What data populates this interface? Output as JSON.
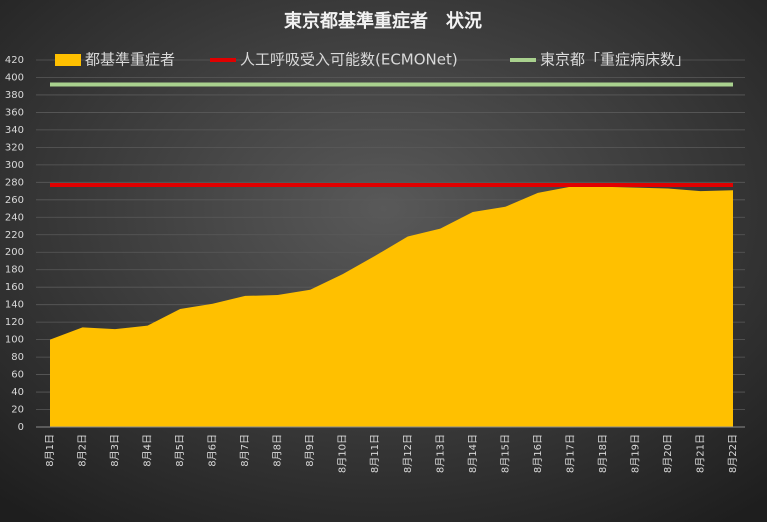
{
  "chart_data": {
    "type": "area",
    "title": "東京都基準重症者　状況",
    "categories": [
      "8月1日",
      "8月2日",
      "8月3日",
      "8月4日",
      "8月5日",
      "8月6日",
      "8月7日",
      "8月8日",
      "8月9日",
      "8月10日",
      "8月11日",
      "8月12日",
      "8月13日",
      "8月14日",
      "8月15日",
      "8月16日",
      "8月17日",
      "8月18日",
      "8月19日",
      "8月20日",
      "8月21日",
      "8月22日"
    ],
    "series": [
      {
        "name": "都基準重症者",
        "type": "area",
        "color": "#ffc000",
        "values": [
          100,
          114,
          112,
          116,
          135,
          141,
          150,
          151,
          157,
          175,
          196,
          218,
          227,
          246,
          252,
          268,
          275,
          275,
          274,
          273,
          270,
          271
        ]
      },
      {
        "name": "人工呼吸受入可能数(ECMONet)",
        "type": "line",
        "color": "#e00000",
        "values": [
          277,
          277,
          277,
          277,
          277,
          277,
          277,
          277,
          277,
          277,
          277,
          277,
          277,
          277,
          277,
          277,
          277,
          277,
          277,
          277,
          277,
          277
        ]
      },
      {
        "name": "東京都「重症病床数」",
        "type": "line",
        "color": "#a9d18e",
        "values": [
          392,
          392,
          392,
          392,
          392,
          392,
          392,
          392,
          392,
          392,
          392,
          392,
          392,
          392,
          392,
          392,
          392,
          392,
          392,
          392,
          392,
          392
        ]
      }
    ],
    "ylim": [
      0,
      420
    ],
    "yticks": [
      0,
      20,
      40,
      60,
      80,
      100,
      120,
      140,
      160,
      180,
      200,
      220,
      240,
      260,
      280,
      300,
      320,
      340,
      360,
      380,
      400,
      420
    ],
    "grid": true,
    "legend": "top"
  }
}
